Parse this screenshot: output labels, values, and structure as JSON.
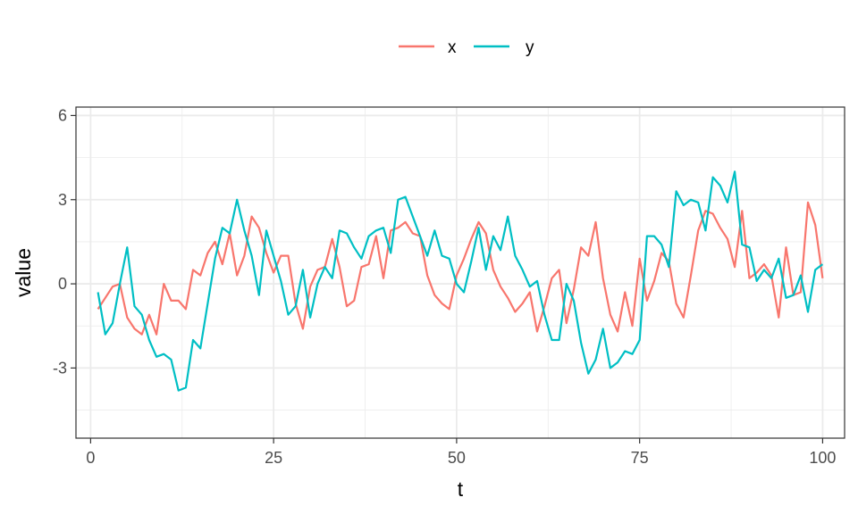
{
  "chart_data": {
    "type": "line",
    "xlabel": "t",
    "ylabel": "value",
    "xlim": [
      -2,
      103
    ],
    "ylim": [
      -5.5,
      6.3
    ],
    "x_ticks": [
      0,
      25,
      50,
      75,
      100
    ],
    "x_tick_labels": [
      "0",
      "25",
      "50",
      "75",
      "100"
    ],
    "y_ticks": [
      -3,
      0,
      3,
      6
    ],
    "y_tick_labels": [
      "-3",
      "0",
      "3",
      "6"
    ],
    "x_minor_ticks": [
      12.5,
      37.5,
      62.5,
      87.5
    ],
    "y_minor_ticks": [
      -4.5,
      -1.5,
      1.5,
      4.5
    ],
    "grid": true,
    "legend": {
      "position": "top",
      "title": ""
    },
    "x": [
      1,
      2,
      3,
      4,
      5,
      6,
      7,
      8,
      9,
      10,
      11,
      12,
      13,
      14,
      15,
      16,
      17,
      18,
      19,
      20,
      21,
      22,
      23,
      24,
      25,
      26,
      27,
      28,
      29,
      30,
      31,
      32,
      33,
      34,
      35,
      36,
      37,
      38,
      39,
      40,
      41,
      42,
      43,
      44,
      45,
      46,
      47,
      48,
      49,
      50,
      51,
      52,
      53,
      54,
      55,
      56,
      57,
      58,
      59,
      60,
      61,
      62,
      63,
      64,
      65,
      66,
      67,
      68,
      69,
      70,
      71,
      72,
      73,
      74,
      75,
      76,
      77,
      78,
      79,
      80,
      81,
      82,
      83,
      84,
      85,
      86,
      87,
      88,
      89,
      90,
      91,
      92,
      93,
      94,
      95,
      96,
      97,
      98,
      99,
      100
    ],
    "series": [
      {
        "name": "x",
        "color": "#F8766D",
        "values": [
          -0.9,
          -0.5,
          -0.1,
          0.0,
          -1.2,
          -1.6,
          -1.8,
          -1.1,
          -1.8,
          0.0,
          -0.6,
          -0.6,
          -0.9,
          0.5,
          0.3,
          1.1,
          1.5,
          0.7,
          1.8,
          0.3,
          1.0,
          2.4,
          2.0,
          1.1,
          0.4,
          1.0,
          1.0,
          -0.7,
          -1.6,
          -0.1,
          0.5,
          0.6,
          1.6,
          0.6,
          -0.8,
          -0.6,
          0.6,
          0.7,
          1.7,
          0.2,
          1.9,
          2.0,
          2.2,
          1.8,
          1.7,
          0.3,
          -0.4,
          -0.7,
          -0.9,
          0.3,
          0.9,
          1.6,
          2.2,
          1.8,
          0.5,
          -0.1,
          -0.5,
          -1.0,
          -0.7,
          -0.3,
          -1.7,
          -0.8,
          0.2,
          0.5,
          -1.4,
          -0.2,
          1.3,
          1.0,
          2.2,
          0.2,
          -1.1,
          -1.7,
          -0.3,
          -1.5,
          0.9,
          -0.6,
          0.1,
          1.1,
          0.8,
          -0.7,
          -1.2,
          0.3,
          1.9,
          2.6,
          2.5,
          2.0,
          1.6,
          0.6,
          2.6,
          0.2,
          0.4,
          0.7,
          0.3,
          -1.2,
          1.3,
          -0.4,
          -0.3,
          2.9,
          2.1,
          0.2
        ]
      },
      {
        "name": "y",
        "color": "#00BFC4",
        "values": [
          -0.3,
          -1.8,
          -1.4,
          0.0,
          1.3,
          -0.8,
          -1.1,
          -2.0,
          -2.6,
          -2.5,
          -2.7,
          -3.8,
          -3.7,
          -2.0,
          -2.3,
          -0.7,
          0.9,
          2.0,
          1.8,
          3.0,
          1.9,
          1.0,
          -0.4,
          1.9,
          1.0,
          0.1,
          -1.1,
          -0.8,
          0.5,
          -1.2,
          0.0,
          0.6,
          0.2,
          1.9,
          1.8,
          1.3,
          0.9,
          1.7,
          1.9,
          2.0,
          1.1,
          3.0,
          3.1,
          2.4,
          1.7,
          1.0,
          1.9,
          1.0,
          0.9,
          0.0,
          -0.3,
          0.8,
          2.0,
          0.5,
          1.7,
          1.2,
          2.4,
          1.0,
          0.5,
          -0.1,
          0.1,
          -1.1,
          -2.0,
          -2.0,
          0.0,
          -0.6,
          -2.1,
          -3.2,
          -2.7,
          -1.6,
          -3.0,
          -2.8,
          -2.4,
          -2.5,
          -2.0,
          1.7,
          1.7,
          1.4,
          0.6,
          3.3,
          2.8,
          3.0,
          2.9,
          1.9,
          3.8,
          3.5,
          2.9,
          4.0,
          1.4,
          1.3,
          0.1,
          0.5,
          0.2,
          0.9,
          -0.5,
          -0.4,
          0.3,
          -1.0,
          0.5,
          0.7
        ]
      }
    ]
  }
}
